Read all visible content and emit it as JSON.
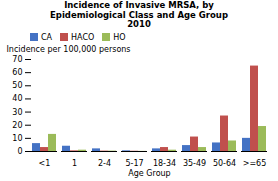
{
  "chart_data": {
    "type": "bar",
    "title": "Incidence of Invasive MRSA, by\nEpidemiological Class and Age Group\n2010",
    "xlabel": "Age Group",
    "ylabel": "Incidence per 100,000 persons",
    "categories": [
      "<1",
      "1",
      "2-4",
      "5-17",
      "18-34",
      "35-49",
      "50-64",
      ">=65"
    ],
    "series": [
      {
        "name": "CA",
        "color": "#4472c4",
        "values": [
          6,
          4,
          2,
          0.5,
          2,
          4.5,
          6.5,
          10
        ]
      },
      {
        "name": "HACO",
        "color": "#c0504d",
        "values": [
          3,
          0.5,
          0.3,
          0.2,
          3,
          11,
          27,
          65
        ]
      },
      {
        "name": "HO",
        "color": "#9bbb59",
        "values": [
          13,
          1,
          0.3,
          0.1,
          1,
          3,
          8,
          19
        ]
      }
    ],
    "ylim": [
      0,
      70
    ],
    "yticks": [
      0,
      10,
      20,
      30,
      40,
      50,
      60,
      70
    ],
    "grid": false,
    "legend": "upper left"
  }
}
